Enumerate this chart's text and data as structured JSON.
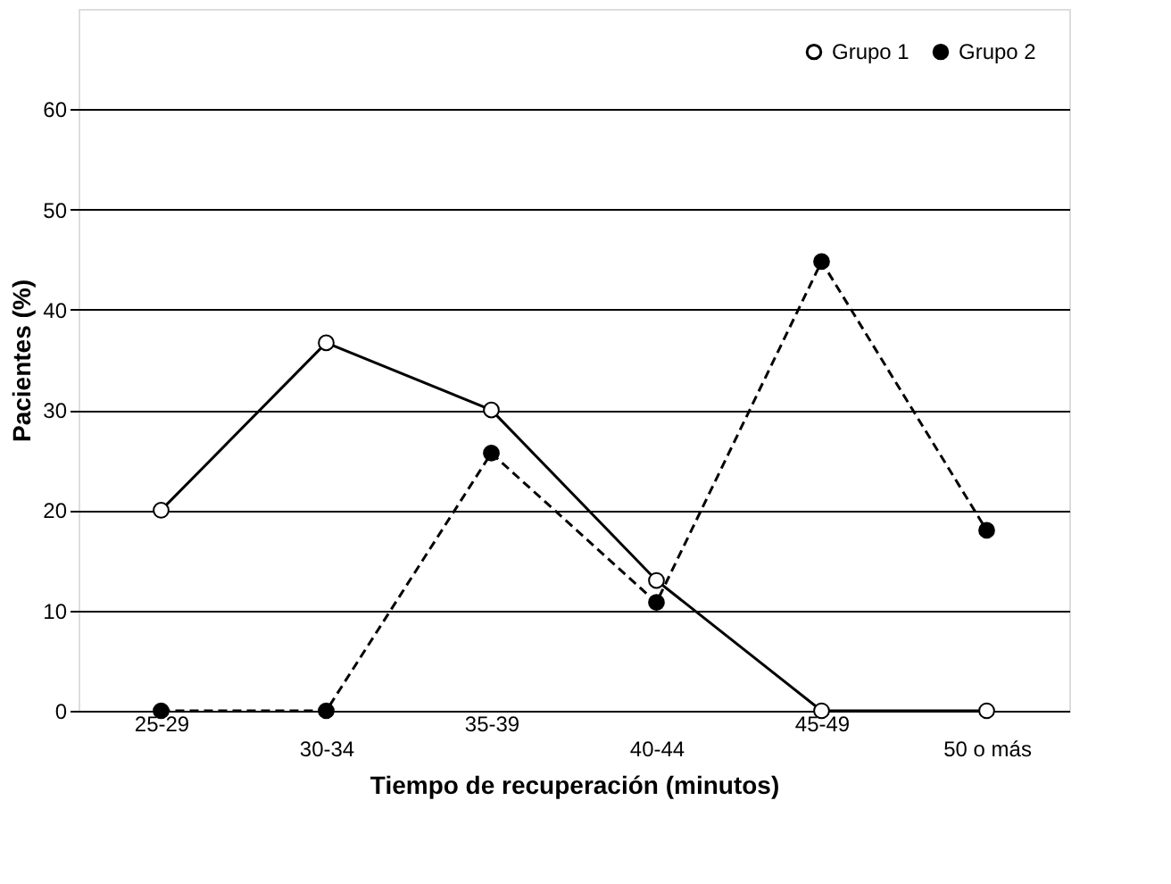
{
  "chart_data": {
    "type": "line",
    "xlabel": "Tiempo de recuperación (minutos)",
    "ylabel": "Pacientes (%)",
    "categories": [
      "25-29",
      "30-34",
      "35-39",
      "40-44",
      "45-49",
      "50 o más"
    ],
    "series": [
      {
        "name": "Grupo 1",
        "color": "#000000",
        "line_style": "solid",
        "values": [
          20,
          36.7,
          30,
          13,
          0,
          0
        ]
      },
      {
        "name": "Grupo 2",
        "color": "#000000",
        "line_style": "dashed",
        "values": [
          0,
          0,
          25.7,
          10.8,
          44.8,
          18
        ]
      }
    ],
    "ylim": [
      0,
      70
    ],
    "yticks": [
      0,
      10,
      20,
      30,
      40,
      50,
      60
    ],
    "grid": "y",
    "legend": "top right",
    "marker": "circle"
  }
}
